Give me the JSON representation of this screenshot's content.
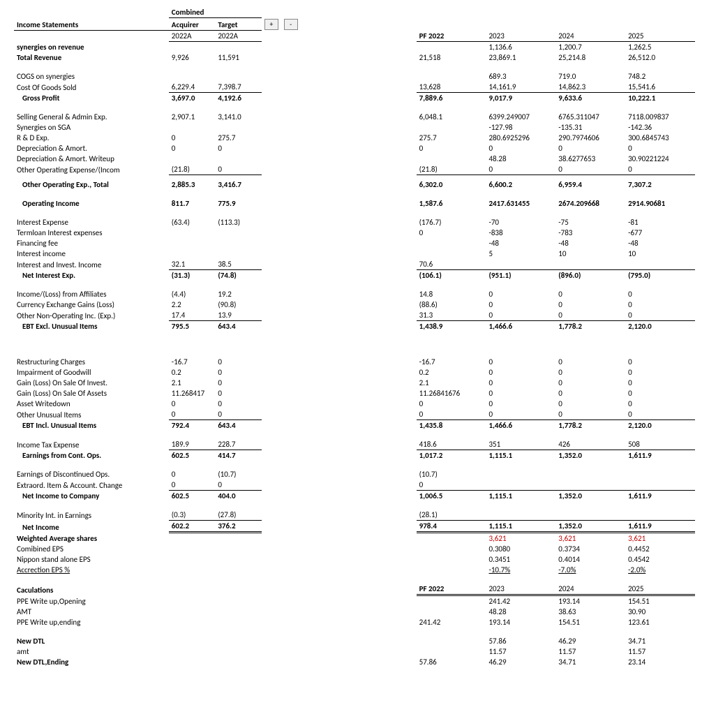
{
  "header": {
    "title": "Income Statements",
    "combined": "Combined",
    "acquirer": "Acquirer",
    "target": "Target",
    "acq_year": "2022A",
    "tgt_year": "2022A",
    "pf": "PF 2022",
    "y23": "2023",
    "y24": "2024",
    "y25": "2025",
    "plus": "+",
    "minus": "-"
  },
  "rows": {
    "syn_rev": {
      "label": "synergies on revenue",
      "pf": "",
      "y23": "1,136.6",
      "y24": "1,200.7",
      "y25": "1,262.5"
    },
    "tot_rev": {
      "label": "Total Revenue",
      "acq": "9,926",
      "tgt": "11,591",
      "pf": "21,518",
      "y23": "23,869.1",
      "y24": "25,214.8",
      "y25": "26,512.0"
    },
    "cogs_syn": {
      "label": "COGS on synergies",
      "y23": "689.3",
      "y24": "719.0",
      "y25": "748.2"
    },
    "cogs": {
      "label": "Cost Of Goods Sold",
      "acq": "6,229.4",
      "tgt": "7,398.7",
      "pf": "13,628",
      "y23": "14,161.9",
      "y24": "14,862.3",
      "y25": "15,541.6"
    },
    "gp": {
      "label": "Gross Profit",
      "acq": "3,697.0",
      "tgt": "4,192.6",
      "pf": "7,889.6",
      "y23": "9,017.9",
      "y24": "9,633.6",
      "y25": "10,222.1"
    },
    "sga": {
      "label": "Selling General & Admin Exp.",
      "acq": "2,907.1",
      "tgt": "3,141.0",
      "pf": "6,048.1",
      "y23": "6399.249007",
      "y24": "6765.311047",
      "y25": "7118.009837"
    },
    "sga_syn": {
      "label": "Synergies on SGA",
      "y23": "-127.98",
      "y24": "-135.31",
      "y25": "-142.36"
    },
    "rd": {
      "label": "R & D Exp.",
      "acq": "0",
      "tgt": "275.7",
      "pf": "275.7",
      "y23": "280.6925296",
      "y24": "290.7974606",
      "y25": "300.6845743"
    },
    "da": {
      "label": "Depreciation & Amort.",
      "acq": "0",
      "tgt": "0",
      "pf": "0",
      "y23": "0",
      "y24": "0",
      "y25": "0"
    },
    "da_wu": {
      "label": "Depreciation & Amort. Writeup",
      "y23": "48.28",
      "y24": "38.6277653",
      "y25": "30.90221224"
    },
    "ooe": {
      "label": "Other Operating Expense/(Incom",
      "acq": "(21.8)",
      "tgt": "0",
      "pf": "(21.8)",
      "y23": "0",
      "y24": "0",
      "y25": "0"
    },
    "ooe_tot": {
      "label": "Other Operating Exp., Total",
      "acq": "2,885.3",
      "tgt": "3,416.7",
      "pf": "6,302.0",
      "y23": "6,600.2",
      "y24": "6,959.4",
      "y25": "7,307.2"
    },
    "op_inc": {
      "label": "Operating Income",
      "acq": "811.7",
      "tgt": "775.9",
      "pf": "1,587.6",
      "y23": "2417.631455",
      "y24": "2674.209668",
      "y25": "2914.90681"
    },
    "int_exp": {
      "label": "Interest Expense",
      "acq": "(63.4)",
      "tgt": "(113.3)",
      "pf": "(176.7)",
      "y23": "-70",
      "y24": "-75",
      "y25": "-81"
    },
    "term_int": {
      "label": "Termloan Interest expenses",
      "pf": "0",
      "y23": "-838",
      "y24": "-783",
      "y25": "-677"
    },
    "fin_fee": {
      "label": "Financing fee",
      "y23": "-48",
      "y24": "-48",
      "y25": "-48"
    },
    "int_inc": {
      "label": "Interest income",
      "y23": "5",
      "y24": "10",
      "y25": "10"
    },
    "inv_inc": {
      "label": "Interest and Invest. Income",
      "acq": "32.1",
      "tgt": "38.5",
      "pf": "70.6"
    },
    "net_int": {
      "label": "Net Interest Exp.",
      "acq": "(31.3)",
      "tgt": "(74.8)",
      "pf": "(106.1)",
      "y23": "(951.1)",
      "y24": "(896.0)",
      "y25": "(795.0)"
    },
    "aff": {
      "label": "Income/(Loss) from Affiliates",
      "acq": "(4.4)",
      "tgt": "19.2",
      "pf": "14.8",
      "y23": "0",
      "y24": "0",
      "y25": "0"
    },
    "fx": {
      "label": "Currency Exchange Gains (Loss)",
      "acq": "2.2",
      "tgt": "(90.8)",
      "pf": "(88.6)",
      "y23": "0",
      "y24": "0",
      "y25": "0"
    },
    "nonop": {
      "label": "Other Non-Operating Inc. (Exp.)",
      "acq": "17.4",
      "tgt": "13.9",
      "pf": "31.3",
      "y23": "0",
      "y24": "0",
      "y25": "0"
    },
    "ebt_ex": {
      "label": "EBT Excl. Unusual Items",
      "acq": "795.5",
      "tgt": "643.4",
      "pf": "1,438.9",
      "y23": "1,466.6",
      "y24": "1,778.2",
      "y25": "2,120.0"
    },
    "restr": {
      "label": "Restructuring Charges",
      "acq": "-16.7",
      "tgt": "0",
      "pf": "-16.7",
      "y23": "0",
      "y24": "0",
      "y25": "0"
    },
    "gw": {
      "label": "Impairment of Goodwill",
      "acq": "0.2",
      "tgt": "0",
      "pf": "0.2",
      "y23": "0",
      "y24": "0",
      "y25": "0"
    },
    "gl_inv": {
      "label": "Gain (Loss) On Sale Of Invest.",
      "acq": "2.1",
      "tgt": "0",
      "pf": "2.1",
      "y23": "0",
      "y24": "0",
      "y25": "0"
    },
    "gl_ast": {
      "label": "Gain (Loss) On Sale Of Assets",
      "acq": "11.268417",
      "tgt": "0",
      "pf": "11.26841676",
      "y23": "0",
      "y24": "0",
      "y25": "0"
    },
    "ast_wd": {
      "label": "Asset Writedown",
      "acq": "0",
      "tgt": "0",
      "pf": "0",
      "y23": "0",
      "y24": "0",
      "y25": "0"
    },
    "oth_un": {
      "label": "Other Unusual Items",
      "acq": "0",
      "tgt": "0",
      "pf": "0",
      "y23": "0",
      "y24": "0",
      "y25": "0"
    },
    "ebt_in": {
      "label": "EBT Incl. Unusual Items",
      "acq": "792.4",
      "tgt": "643.4",
      "pf": "1,435.8",
      "y23": "1,466.6",
      "y24": "1,778.2",
      "y25": "2,120.0"
    },
    "tax": {
      "label": "Income Tax Expense",
      "acq": "189.9",
      "tgt": "228.7",
      "pf": "418.6",
      "y23": "351",
      "y24": "426",
      "y25": "508"
    },
    "cont_ops": {
      "label": "Earnings from Cont. Ops.",
      "acq": "602.5",
      "tgt": "414.7",
      "pf": "1,017.2",
      "y23": "1,115.1",
      "y24": "1,352.0",
      "y25": "1,611.9"
    },
    "disc_ops": {
      "label": "Earnings of Discontinued Ops.",
      "acq": "0",
      "tgt": "(10.7)",
      "pf": "(10.7)"
    },
    "extra": {
      "label": "Extraord. Item & Account. Change",
      "acq": "0",
      "tgt": "0",
      "pf": "0"
    },
    "ni_co": {
      "label": "Net Income to Company",
      "acq": "602.5",
      "tgt": "404.0",
      "pf": "1,006.5",
      "y23": "1,115.1",
      "y24": "1,352.0",
      "y25": "1,611.9"
    },
    "minint": {
      "label": "Minority Int. in Earnings",
      "acq": "(0.3)",
      "tgt": "(27.8)",
      "pf": "(28.1)"
    },
    "ni": {
      "label": "Net Income",
      "acq": "602.2",
      "tgt": "376.2",
      "pf": "978.4",
      "y23": "1,115.1",
      "y24": "1,352.0",
      "y25": "1,611.9"
    },
    "wavg": {
      "label": "Weighted Average shares",
      "y23": "3,621",
      "y24": "3,621",
      "y25": "3,621"
    },
    "ceps": {
      "label": "Comibined EPS",
      "y23": "0.3080",
      "y24": "0.3734",
      "y25": "0.4452"
    },
    "neps": {
      "label": "Nippon stand alone EPS",
      "y23": "0.3451",
      "y24": "0.4014",
      "y25": "0.4542"
    },
    "acc": {
      "label": "Accrection EPS %",
      "y23": "-10.7%",
      "y24": "-7.0%",
      "y25": "-2.0%"
    },
    "calc": {
      "label": "Caculations",
      "pf": "PF 2022",
      "y23": "2023",
      "y24": "2024",
      "y25": "2025"
    },
    "ppe_op": {
      "label": "PPE Write up,Opening",
      "y23": "241.42",
      "y24": "193.14",
      "y25": "154.51"
    },
    "amt": {
      "label": "AMT",
      "y23": "48.28",
      "y24": "38.63",
      "y25": "30.90"
    },
    "ppe_end": {
      "label": "PPE Write up,ending",
      "pf": "241.42",
      "y23": "193.14",
      "y24": "154.51",
      "y25": "123.61"
    },
    "ndtl": {
      "label": "New DTL",
      "y23": "57.86",
      "y24": "46.29",
      "y25": "34.71"
    },
    "amt2": {
      "label": "amt",
      "y23": "11.57",
      "y24": "11.57",
      "y25": "11.57"
    },
    "ndtl_end": {
      "label": "New DTL,Ending",
      "pf": "57.86",
      "y23": "46.29",
      "y24": "34.71",
      "y25": "23.14"
    }
  }
}
